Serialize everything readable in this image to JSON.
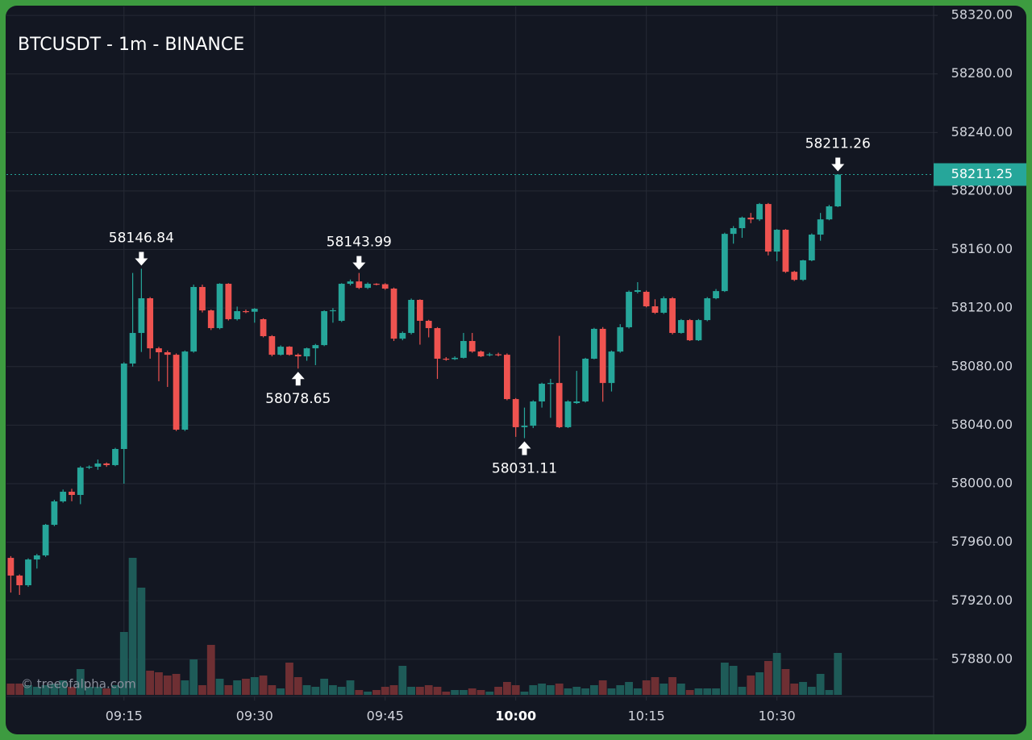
{
  "chart_data": {
    "type": "candlestick",
    "title": "BTCUSDT - 1m - BINANCE",
    "watermark": "© treeofalpha.com",
    "x": [
      "09:02",
      "09:03",
      "09:04",
      "09:05",
      "09:06",
      "09:07",
      "09:08",
      "09:09",
      "09:10",
      "09:11",
      "09:12",
      "09:13",
      "09:14",
      "09:15",
      "09:16",
      "09:17",
      "09:18",
      "09:19",
      "09:20",
      "09:21",
      "09:22",
      "09:23",
      "09:24",
      "09:25",
      "09:26",
      "09:27",
      "09:28",
      "09:29",
      "09:30",
      "09:31",
      "09:32",
      "09:33",
      "09:34",
      "09:35",
      "09:36",
      "09:37",
      "09:38",
      "09:39",
      "09:40",
      "09:41",
      "09:42",
      "09:43",
      "09:44",
      "09:45",
      "09:46",
      "09:47",
      "09:48",
      "09:49",
      "09:50",
      "09:51",
      "09:52",
      "09:53",
      "09:54",
      "09:55",
      "09:56",
      "09:57",
      "09:58",
      "09:59",
      "10:00",
      "10:01",
      "10:02",
      "10:03",
      "10:04",
      "10:05",
      "10:06",
      "10:07",
      "10:08",
      "10:09",
      "10:10",
      "10:11",
      "10:12",
      "10:13",
      "10:14",
      "10:15",
      "10:16",
      "10:17",
      "10:18",
      "10:19",
      "10:20",
      "10:21",
      "10:22",
      "10:23",
      "10:24",
      "10:25",
      "10:26",
      "10:27",
      "10:28",
      "10:29",
      "10:30",
      "10:31",
      "10:32",
      "10:33",
      "10:34",
      "10:35",
      "10:36",
      "10:37"
    ],
    "open": [
      57949.3,
      57937.2,
      57930.6,
      57948.2,
      57951.0,
      57971.9,
      57987.9,
      57994.5,
      57992.3,
      58011.0,
      58011.6,
      58013.8,
      58012.7,
      58023.7,
      58082.1,
      58103.0,
      58126.7,
      58092.5,
      58089.8,
      58088.1,
      58036.9,
      58090.3,
      58134.4,
      58118.4,
      58106.3,
      58136.6,
      58112.4,
      58117.9,
      58117.5,
      58112.4,
      58100.8,
      58088.1,
      58093.6,
      58088.1,
      58087.0,
      58092.5,
      58094.7,
      58117.9,
      58111.3,
      58136.6,
      58138.2,
      58133.8,
      58136.6,
      58136.3,
      58133.3,
      58099.1,
      58103.0,
      58125.6,
      58111.3,
      58106.3,
      58085.4,
      58085.1,
      58086.0,
      58097.5,
      58090.3,
      58088.0,
      58088.4,
      58088.1,
      58057.8,
      58038.6,
      58039.6,
      58056.2,
      58068.3,
      58068.8,
      58038.6,
      58055.1,
      58056.2,
      58085.4,
      58105.8,
      58068.8,
      58090.3,
      58106.9,
      58131.1,
      58131.1,
      58121.2,
      58116.8,
      58126.7,
      58103.0,
      58111.8,
      58098.0,
      58111.8,
      58126.7,
      58131.6,
      58170.7,
      58174.6,
      58181.8,
      58180.6,
      58191.1,
      58158.6,
      58173.5,
      58144.8,
      58139.3,
      58152.6,
      58170.2,
      58180.6,
      58189.5
    ],
    "high": [
      57950.5,
      57938.0,
      57949.0,
      57952.0,
      57972.5,
      57989.0,
      57996.0,
      57996.5,
      58012.0,
      58012.5,
      58016.5,
      58014.5,
      58024.5,
      58083.0,
      58144.0,
      58146.84,
      58127.5,
      58093.5,
      58091.0,
      58089.0,
      58091.0,
      58136.0,
      58136.0,
      58119.0,
      58137.0,
      58137.0,
      58121.0,
      58119.0,
      58120.0,
      58113.0,
      58101.5,
      58094.5,
      58094.0,
      58089.0,
      58093.0,
      58095.5,
      58118.5,
      58120.0,
      58137.0,
      58139.5,
      58143.99,
      58137.5,
      58137.0,
      58137.0,
      58134.0,
      58104.0,
      58126.5,
      58126.0,
      58112.0,
      58107.0,
      58086.5,
      58087.0,
      58103.0,
      58103.0,
      58091.0,
      58089.5,
      58089.5,
      58089.0,
      58058.5,
      58052.0,
      58057.0,
      58069.0,
      58071.6,
      58101.0,
      58057.0,
      58077.1,
      58086.0,
      58106.5,
      58107.0,
      58091.0,
      58109.0,
      58132.0,
      58137.7,
      58132.0,
      58126.0,
      58128.0,
      58127.5,
      58112.5,
      58112.5,
      58112.5,
      58127.5,
      58133.0,
      58171.5,
      58176.0,
      58182.5,
      58185.0,
      58191.8,
      58191.8,
      58174.0,
      58174.0,
      58145.5,
      58153.0,
      58171.0,
      58185.0,
      58190.5,
      58211.26
    ],
    "low": [
      57925.6,
      57924.0,
      57929.5,
      57942.0,
      57950.0,
      57971.0,
      57987.0,
      57988.0,
      57986.0,
      58010.0,
      58009.5,
      58011.5,
      58012.0,
      58000.0,
      58080.0,
      58090.0,
      58085.4,
      58070.0,
      58066.1,
      58036.0,
      58036.0,
      58089.5,
      58117.0,
      58105.0,
      58105.5,
      58111.5,
      58111.5,
      58116.5,
      58110.0,
      58100.0,
      58087.0,
      58087.5,
      58087.5,
      58078.65,
      58084.0,
      58081.0,
      58094.0,
      58110.0,
      58110.5,
      58135.5,
      58133.0,
      58133.0,
      58135.5,
      58132.5,
      58097.5,
      58098.0,
      58102.0,
      58095.0,
      58100.0,
      58071.6,
      58084.0,
      58084.5,
      58085.5,
      58089.5,
      58086.5,
      58087.0,
      58087.0,
      58057.0,
      58032.0,
      58031.11,
      58038.0,
      58052.0,
      58045.0,
      58038.0,
      58038.0,
      58054.5,
      58055.5,
      58085.0,
      58056.0,
      58063.0,
      58089.5,
      58106.0,
      58130.0,
      58120.5,
      58116.0,
      58116.0,
      58102.0,
      58102.5,
      58097.5,
      58097.5,
      58111.0,
      58126.0,
      58131.0,
      58164.0,
      58168.0,
      58178.0,
      58179.5,
      58156.0,
      58152.0,
      58144.0,
      58138.5,
      58138.5,
      58152.0,
      58166.0,
      58180.0,
      58189.0
    ],
    "close": [
      57937.2,
      57930.6,
      57948.2,
      57951.0,
      57971.9,
      57987.9,
      57994.5,
      57992.3,
      58011.0,
      58011.6,
      58013.8,
      58012.7,
      58023.7,
      58082.1,
      58103.0,
      58126.7,
      58092.5,
      58089.8,
      58088.1,
      58036.9,
      58090.3,
      58134.4,
      58118.4,
      58106.3,
      58136.6,
      58112.4,
      58117.9,
      58117.5,
      58119.5,
      58100.8,
      58088.1,
      58093.6,
      58088.1,
      58087.0,
      58092.5,
      58094.7,
      58117.9,
      58118.5,
      58136.6,
      58138.2,
      58133.8,
      58136.6,
      58136.3,
      58133.3,
      58099.1,
      58103.0,
      58125.6,
      58111.3,
      58106.3,
      58085.4,
      58085.1,
      58086.0,
      58097.5,
      58090.3,
      58087.0,
      58088.4,
      58088.1,
      58057.8,
      58038.6,
      58039.6,
      58056.2,
      58068.3,
      58068.8,
      58038.6,
      58056.2,
      58056.2,
      58085.4,
      58105.8,
      58068.8,
      58090.3,
      58106.9,
      58131.1,
      58132.2,
      58121.2,
      58116.8,
      58126.7,
      58103.0,
      58111.8,
      58098.0,
      58111.8,
      58126.7,
      58131.6,
      58170.7,
      58174.6,
      58181.8,
      58180.6,
      58191.1,
      58158.6,
      58173.5,
      58144.8,
      58139.3,
      58152.6,
      58170.2,
      58180.6,
      58189.5,
      58211.25
    ],
    "volume": [
      14,
      14,
      12,
      10,
      12,
      14,
      18,
      10,
      32,
      10,
      10,
      8,
      12,
      78,
      170,
      133,
      30,
      28,
      24,
      26,
      18,
      44,
      12,
      62,
      20,
      12,
      18,
      20,
      22,
      24,
      12,
      8,
      40,
      22,
      12,
      10,
      20,
      12,
      10,
      18,
      6,
      4,
      6,
      10,
      12,
      36,
      10,
      10,
      12,
      10,
      4,
      6,
      6,
      8,
      6,
      4,
      10,
      16,
      12,
      4,
      12,
      14,
      12,
      14,
      8,
      10,
      8,
      12,
      18,
      8,
      12,
      16,
      8,
      18,
      22,
      14,
      22,
      14,
      6,
      8,
      8,
      8,
      40,
      36,
      10,
      24,
      28,
      42,
      52,
      32,
      14,
      16,
      10,
      26,
      6,
      52
    ],
    "up_color": "#26a69a",
    "down_color": "#ef5350",
    "up_volume_color": "#1e5b58",
    "down_volume_color": "#6e2f33",
    "xlim": [
      "09:01:30",
      "10:48:00"
    ],
    "xticks": [
      "09:15",
      "09:30",
      "09:45",
      "10:00",
      "10:15",
      "10:30"
    ],
    "ylim": [
      57855.7,
      58326.1
    ],
    "yticks": [
      {
        "value": 57880,
        "label": "57880.00"
      },
      {
        "value": 57920,
        "label": "57920.00"
      },
      {
        "value": 57960,
        "label": "57960.00"
      },
      {
        "value": 58000,
        "label": "58000.00"
      },
      {
        "value": 58040,
        "label": "58040.00"
      },
      {
        "value": 58080,
        "label": "58080.00"
      },
      {
        "value": 58120,
        "label": "58120.00"
      },
      {
        "value": 58160,
        "label": "58160.00"
      },
      {
        "value": 58200,
        "label": "58200.00"
      },
      {
        "value": 58240,
        "label": "58240.00"
      },
      {
        "value": 58280,
        "label": "58280.00"
      },
      {
        "value": 58320,
        "label": "58320.00"
      }
    ],
    "grid": true,
    "annotations": [
      {
        "x": "09:17",
        "value": 58146.84,
        "position": "above"
      },
      {
        "x": "09:35",
        "value": 58078.65,
        "position": "below"
      },
      {
        "x": "09:42",
        "value": 58143.99,
        "position": "above"
      },
      {
        "x": "10:01",
        "value": 58031.11,
        "position": "below"
      },
      {
        "x": "10:37",
        "value": 58211.26,
        "position": "above"
      }
    ]
  }
}
